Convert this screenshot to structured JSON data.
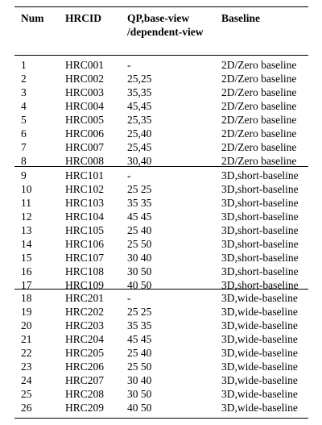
{
  "table": {
    "headers": {
      "num": "Num",
      "hrcid": "HRCID",
      "qp": "QP,base-view /dependent-view",
      "baseline": "Baseline"
    },
    "groups": [
      {
        "rows": [
          {
            "num": "1",
            "hrcid": "HRC001",
            "qp": "-",
            "baseline": "2D/Zero baseline"
          },
          {
            "num": "2",
            "hrcid": "HRC002",
            "qp": "25,25",
            "baseline": "2D/Zero baseline"
          },
          {
            "num": "3",
            "hrcid": "HRC003",
            "qp": "35,35",
            "baseline": "2D/Zero baseline"
          },
          {
            "num": "4",
            "hrcid": "HRC004",
            "qp": "45,45",
            "baseline": "2D/Zero baseline"
          },
          {
            "num": "5",
            "hrcid": "HRC005",
            "qp": "25,35",
            "baseline": "2D/Zero baseline"
          },
          {
            "num": "6",
            "hrcid": "HRC006",
            "qp": "25,40",
            "baseline": "2D/Zero baseline"
          },
          {
            "num": "7",
            "hrcid": "HRC007",
            "qp": "25,45",
            "baseline": "2D/Zero baseline"
          },
          {
            "num": "8",
            "hrcid": "HRC008",
            "qp": "30,40",
            "baseline": "2D/Zero baseline"
          }
        ]
      },
      {
        "rows": [
          {
            "num": "9",
            "hrcid": "HRC101",
            "qp": "-",
            "baseline": "3D,short-baseline"
          },
          {
            "num": "10",
            "hrcid": "HRC102",
            "qp": "25 25",
            "baseline": "3D,short-baseline"
          },
          {
            "num": "11",
            "hrcid": "HRC103",
            "qp": "35 35",
            "baseline": "3D,short-baseline"
          },
          {
            "num": "12",
            "hrcid": "HRC104",
            "qp": "45 45",
            "baseline": "3D,short-baseline"
          },
          {
            "num": "13",
            "hrcid": "HRC105",
            "qp": "25 40",
            "baseline": "3D,short-baseline"
          },
          {
            "num": "14",
            "hrcid": "HRC106",
            "qp": "25 50",
            "baseline": "3D,short-baseline"
          },
          {
            "num": "15",
            "hrcid": "HRC107",
            "qp": "30 40",
            "baseline": "3D,short-baseline"
          },
          {
            "num": "16",
            "hrcid": "HRC108",
            "qp": "30 50",
            "baseline": "3D,short-baseline"
          },
          {
            "num": "17",
            "hrcid": "HRC109",
            "qp": "40 50",
            "baseline": "3D,short-baseline"
          }
        ]
      },
      {
        "rows": [
          {
            "num": "18",
            "hrcid": "HRC201",
            "qp": "-",
            "baseline": "3D,wide-baseline"
          },
          {
            "num": "19",
            "hrcid": "HRC202",
            "qp": "25 25",
            "baseline": "3D,wide-baseline"
          },
          {
            "num": "20",
            "hrcid": "HRC203",
            "qp": "35 35",
            "baseline": "3D,wide-baseline"
          },
          {
            "num": "21",
            "hrcid": "HRC204",
            "qp": "45 45",
            "baseline": "3D,wide-baseline"
          },
          {
            "num": "22",
            "hrcid": "HRC205",
            "qp": "25 40",
            "baseline": "3D,wide-baseline"
          },
          {
            "num": "23",
            "hrcid": "HRC206",
            "qp": "25 50",
            "baseline": "3D,wide-baseline"
          },
          {
            "num": "24",
            "hrcid": "HRC207",
            "qp": "30 40",
            "baseline": "3D,wide-baseline"
          },
          {
            "num": "25",
            "hrcid": "HRC208",
            "qp": "30 50",
            "baseline": "3D,wide-baseline"
          },
          {
            "num": "26",
            "hrcid": "HRC209",
            "qp": "40 50",
            "baseline": "3D,wide-baseline"
          }
        ]
      }
    ]
  }
}
